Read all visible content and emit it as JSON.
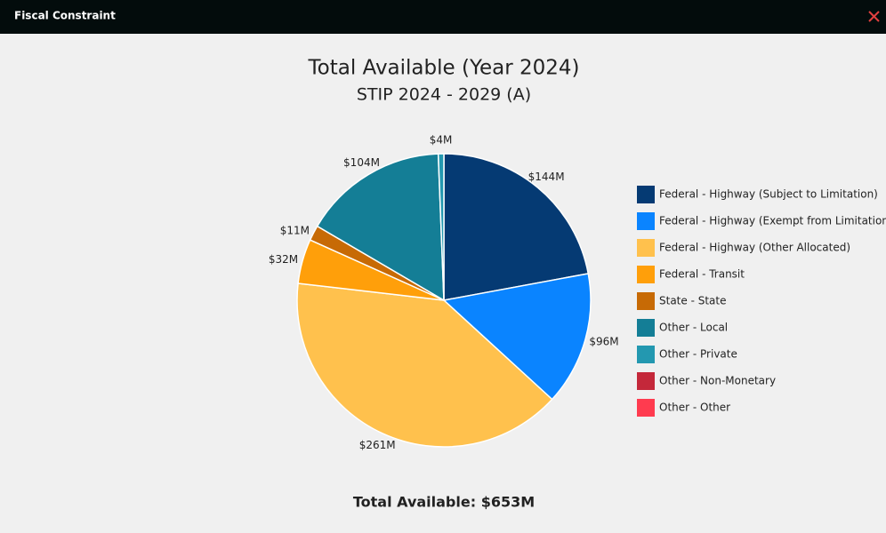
{
  "dialog": {
    "title": "Fiscal Constraint"
  },
  "chart_data": {
    "type": "pie",
    "title": "Total Available (Year 2024)",
    "subtitle": "STIP 2024 - 2029 (A)",
    "categories": [
      "Federal - Highway (Subject to Limitation)",
      "Federal - Highway (Exempt from Limitation)",
      "Federal - Highway (Other Allocated)",
      "Federal - Transit",
      "State - State",
      "Other - Local",
      "Other - Private",
      "Other - Non-Monetary",
      "Other - Other"
    ],
    "values": [
      144,
      96,
      261,
      32,
      11,
      104,
      4,
      0,
      0
    ],
    "value_labels": [
      "$144M",
      "$96M",
      "$261M",
      "$32M",
      "$11M",
      "$104M",
      "$4M",
      null,
      null
    ],
    "colors": [
      "#053a73",
      "#0a84ff",
      "#ffc14d",
      "#ff9f0a",
      "#c76a05",
      "#147e96",
      "#2398b0",
      "#c4283a",
      "#ff3b4f"
    ],
    "legend": "right",
    "total_label": "Total Available: $653M"
  }
}
